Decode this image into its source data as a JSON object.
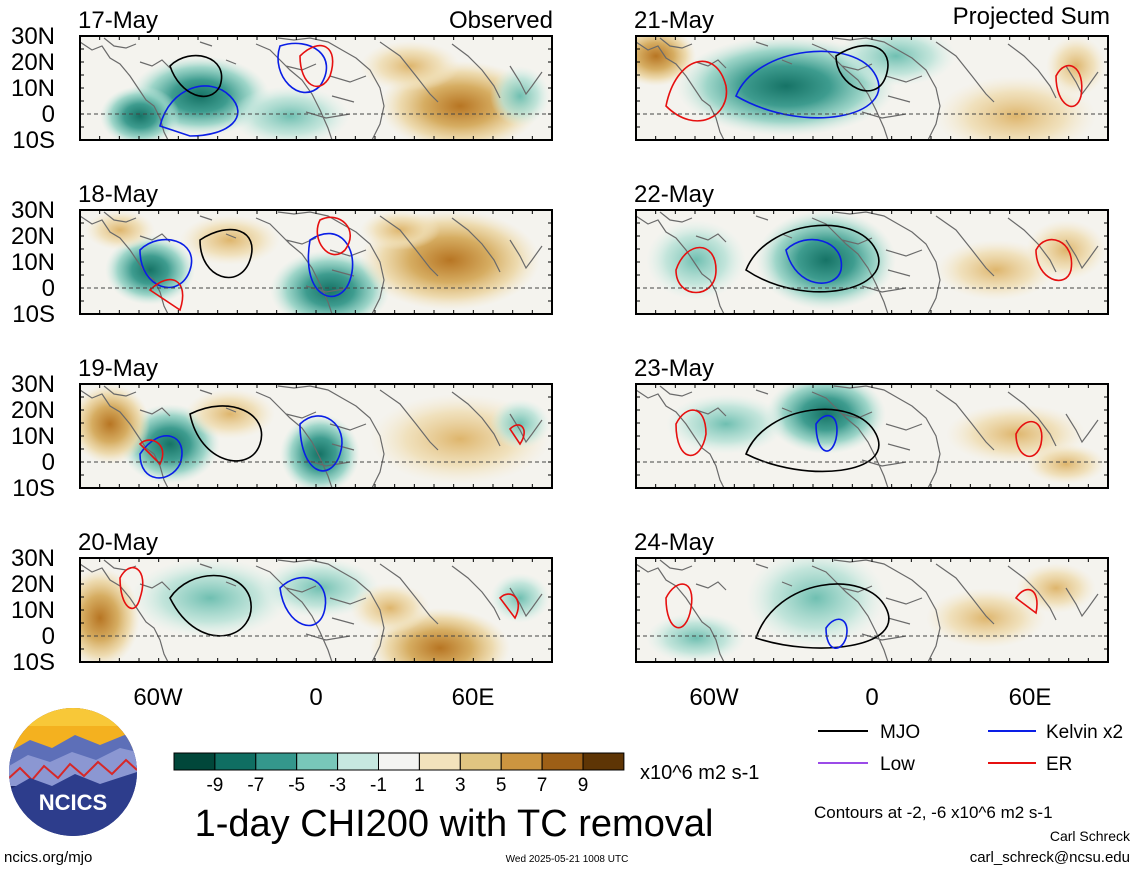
{
  "header": {
    "left_title": "Observed",
    "right_title": "Projected Sum"
  },
  "panels": [
    {
      "date": "17-May",
      "column": "observed"
    },
    {
      "date": "18-May",
      "column": "observed"
    },
    {
      "date": "19-May",
      "column": "observed"
    },
    {
      "date": "20-May",
      "column": "observed"
    },
    {
      "date": "21-May",
      "column": "projected"
    },
    {
      "date": "22-May",
      "column": "projected"
    },
    {
      "date": "23-May",
      "column": "projected"
    },
    {
      "date": "24-May",
      "column": "projected"
    }
  ],
  "lat_ticks": [
    "30N",
    "20N",
    "10N",
    "0",
    "10S"
  ],
  "lon_ticks": [
    "60W",
    "0",
    "60E"
  ],
  "colorbar": {
    "tick_labels": [
      "-9",
      "-7",
      "-5",
      "-3",
      "-1",
      "1",
      "3",
      "5",
      "7",
      "9"
    ],
    "colors": [
      "#01473a",
      "#0f6e62",
      "#34978c",
      "#78c7b9",
      "#c6e8e0",
      "#f4f4f2",
      "#f3e3bc",
      "#e0c581",
      "#cc9540",
      "#9d5f16",
      "#5e3505"
    ],
    "units": "x10^6 m2 s-1"
  },
  "legend": {
    "items": [
      {
        "label": "MJO",
        "color": "#000000"
      },
      {
        "label": "Kelvin x2",
        "color": "#0a1ee6"
      },
      {
        "label": "Low",
        "color": "#9b4be8"
      },
      {
        "label": "ER",
        "color": "#e61010"
      }
    ],
    "contours_note": "Contours at -2, -6 x10^6 m2 s-1"
  },
  "main_title": "1-day CHI200 with TC removal",
  "logo_text": "NCICS",
  "footer": {
    "url": "ncics.org/mjo",
    "timestamp": "Wed 2025-05-21 1008 UTC",
    "author": "Carl Schreck",
    "email": "carl_schreck@ncsu.edu"
  }
}
